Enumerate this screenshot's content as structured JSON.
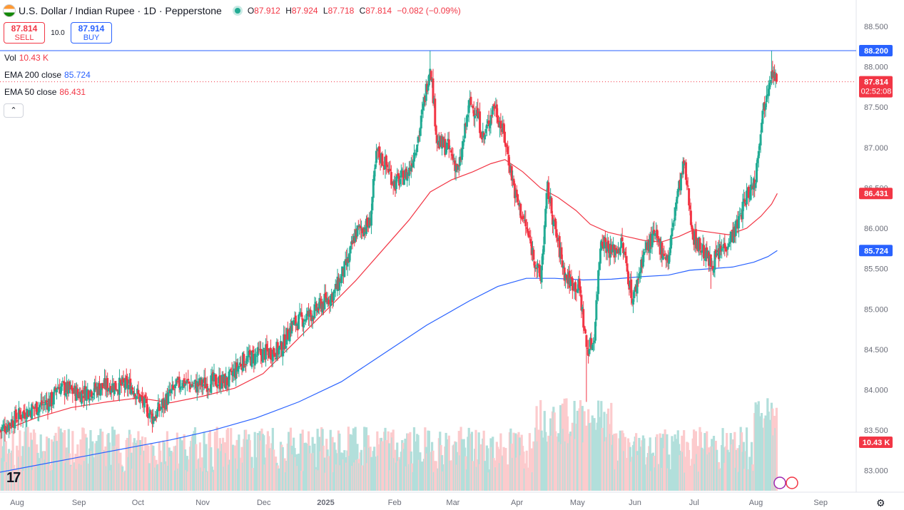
{
  "header": {
    "title": "U.S. Dollar / Indian Rupee · 1D · Pepperstone",
    "ohlc": [
      {
        "key": "O",
        "value": "87.912"
      },
      {
        "key": "H",
        "value": "87.924"
      },
      {
        "key": "L",
        "value": "87.718"
      },
      {
        "key": "C",
        "value": "87.814"
      }
    ],
    "change": "−0.082 (−0.09%)"
  },
  "trade": {
    "sell_price": "87.814",
    "sell_label": "SELL",
    "spread": "10.0",
    "buy_price": "87.914",
    "buy_label": "BUY"
  },
  "legend": {
    "vol_label": "Vol",
    "vol_value": "10.43 K",
    "ema200_label": "EMA 200 close",
    "ema200_value": "85.724",
    "ema50_label": "EMA 50 close",
    "ema50_value": "86.431"
  },
  "price_tags": {
    "high": "88.200",
    "last": "87.814",
    "countdown": "02:52:08",
    "ema50": "86.431",
    "ema200": "85.724",
    "volume": "10.43 K"
  },
  "colors": {
    "up": "#22ab94",
    "down": "#f23645",
    "ema50": "#f23645",
    "ema200": "#2962ff",
    "vol_up": "#b2dfdb",
    "vol_down": "#fccbcd"
  },
  "icons": [
    "tradingview-logo",
    "settings-icon",
    "collapse-icon",
    "currency-flag-icon",
    "market-open-dot-icon"
  ],
  "chart_data": {
    "type": "candlestick",
    "title": "U.S. Dollar / Indian Rupee · 1D · Pepperstone",
    "y_range": [
      82.75,
      88.65
    ],
    "y_ticks": [
      "83.000",
      "83.500",
      "84.000",
      "84.500",
      "85.000",
      "85.500",
      "86.000",
      "86.500",
      "87.000",
      "87.500",
      "88.000",
      "88.500"
    ],
    "y_tick_values": [
      83.0,
      83.5,
      84.0,
      84.5,
      85.0,
      85.5,
      86.0,
      86.5,
      87.0,
      87.5,
      88.0,
      88.5
    ],
    "x_ticks": [
      "Aug",
      "Sep",
      "Oct",
      "Nov",
      "Dec",
      "2025",
      "Feb",
      "Mar",
      "Apr",
      "May",
      "Jun",
      "Jul",
      "Aug",
      "Sep"
    ],
    "x_tick_days": [
      24,
      111,
      194,
      285,
      371,
      458,
      555,
      637,
      727,
      812,
      893,
      976,
      1063,
      1154
    ],
    "horizontal_line": 88.2,
    "last_price": 87.814,
    "anchors": [
      {
        "d": 0,
        "c": 83.5
      },
      {
        "d": 30,
        "c": 83.7
      },
      {
        "d": 75,
        "c": 83.88
      },
      {
        "d": 80,
        "c": 84.05
      },
      {
        "d": 110,
        "c": 83.95
      },
      {
        "d": 150,
        "c": 84.05
      },
      {
        "d": 185,
        "c": 84.05
      },
      {
        "d": 200,
        "c": 83.85
      },
      {
        "d": 215,
        "c": 83.65
      },
      {
        "d": 240,
        "c": 83.95
      },
      {
        "d": 255,
        "c": 84.1
      },
      {
        "d": 275,
        "c": 84.05
      },
      {
        "d": 300,
        "c": 84.1
      },
      {
        "d": 320,
        "c": 84.1
      },
      {
        "d": 340,
        "c": 84.35
      },
      {
        "d": 370,
        "c": 84.45
      },
      {
        "d": 395,
        "c": 84.5
      },
      {
        "d": 410,
        "c": 84.8
      },
      {
        "d": 440,
        "c": 84.95
      },
      {
        "d": 470,
        "c": 85.2
      },
      {
        "d": 490,
        "c": 85.6
      },
      {
        "d": 500,
        "c": 85.95
      },
      {
        "d": 520,
        "c": 86.05
      },
      {
        "d": 530,
        "c": 86.95
      },
      {
        "d": 545,
        "c": 86.75
      },
      {
        "d": 555,
        "c": 86.55
      },
      {
        "d": 575,
        "c": 86.7
      },
      {
        "d": 590,
        "c": 87.2
      },
      {
        "d": 605,
        "c": 88.05
      },
      {
        "d": 615,
        "c": 87.05
      },
      {
        "d": 630,
        "c": 87.0
      },
      {
        "d": 645,
        "c": 86.7
      },
      {
        "d": 660,
        "c": 87.55
      },
      {
        "d": 670,
        "c": 87.45
      },
      {
        "d": 680,
        "c": 87.1
      },
      {
        "d": 695,
        "c": 87.55
      },
      {
        "d": 710,
        "c": 87.1
      },
      {
        "d": 725,
        "c": 86.4
      },
      {
        "d": 740,
        "c": 86.0
      },
      {
        "d": 760,
        "c": 85.35
      },
      {
        "d": 770,
        "c": 86.5
      },
      {
        "d": 780,
        "c": 86.0
      },
      {
        "d": 795,
        "c": 85.4
      },
      {
        "d": 815,
        "c": 85.25
      },
      {
        "d": 825,
        "c": 84.5
      },
      {
        "d": 835,
        "c": 84.6
      },
      {
        "d": 845,
        "c": 85.9
      },
      {
        "d": 860,
        "c": 85.7
      },
      {
        "d": 875,
        "c": 85.8
      },
      {
        "d": 890,
        "c": 85.1
      },
      {
        "d": 905,
        "c": 85.7
      },
      {
        "d": 920,
        "c": 85.9
      },
      {
        "d": 940,
        "c": 85.6
      },
      {
        "d": 950,
        "c": 86.3
      },
      {
        "d": 962,
        "c": 86.8
      },
      {
        "d": 975,
        "c": 85.9
      },
      {
        "d": 990,
        "c": 85.7
      },
      {
        "d": 1000,
        "c": 85.55
      },
      {
        "d": 1020,
        "c": 85.8
      },
      {
        "d": 1035,
        "c": 86.0
      },
      {
        "d": 1050,
        "c": 86.4
      },
      {
        "d": 1062,
        "c": 86.6
      },
      {
        "d": 1070,
        "c": 87.3
      },
      {
        "d": 1078,
        "c": 87.7
      },
      {
        "d": 1085,
        "c": 88.0
      },
      {
        "d": 1088,
        "c": 87.9
      },
      {
        "d": 1093,
        "c": 87.814
      }
    ],
    "ema50_points": [
      {
        "d": 0,
        "v": 83.48
      },
      {
        "d": 50,
        "v": 83.65
      },
      {
        "d": 100,
        "v": 83.78
      },
      {
        "d": 150,
        "v": 83.85
      },
      {
        "d": 195,
        "v": 83.9
      },
      {
        "d": 240,
        "v": 83.84
      },
      {
        "d": 285,
        "v": 83.92
      },
      {
        "d": 330,
        "v": 84.02
      },
      {
        "d": 370,
        "v": 84.2
      },
      {
        "d": 410,
        "v": 84.55
      },
      {
        "d": 455,
        "v": 84.95
      },
      {
        "d": 500,
        "v": 85.35
      },
      {
        "d": 540,
        "v": 85.75
      },
      {
        "d": 575,
        "v": 86.1
      },
      {
        "d": 605,
        "v": 86.45
      },
      {
        "d": 635,
        "v": 86.6
      },
      {
        "d": 665,
        "v": 86.7
      },
      {
        "d": 690,
        "v": 86.8
      },
      {
        "d": 710,
        "v": 86.85
      },
      {
        "d": 735,
        "v": 86.7
      },
      {
        "d": 760,
        "v": 86.5
      },
      {
        "d": 785,
        "v": 86.38
      },
      {
        "d": 810,
        "v": 86.22
      },
      {
        "d": 830,
        "v": 86.05
      },
      {
        "d": 855,
        "v": 85.95
      },
      {
        "d": 880,
        "v": 85.9
      },
      {
        "d": 905,
        "v": 85.85
      },
      {
        "d": 930,
        "v": 85.83
      },
      {
        "d": 955,
        "v": 85.9
      },
      {
        "d": 975,
        "v": 85.98
      },
      {
        "d": 1000,
        "v": 85.95
      },
      {
        "d": 1025,
        "v": 85.92
      },
      {
        "d": 1050,
        "v": 86.0
      },
      {
        "d": 1070,
        "v": 86.15
      },
      {
        "d": 1085,
        "v": 86.3
      },
      {
        "d": 1093,
        "v": 86.431
      }
    ],
    "ema200_points": [
      {
        "d": 0,
        "v": 82.98
      },
      {
        "d": 60,
        "v": 83.08
      },
      {
        "d": 120,
        "v": 83.18
      },
      {
        "d": 180,
        "v": 83.28
      },
      {
        "d": 240,
        "v": 83.38
      },
      {
        "d": 300,
        "v": 83.5
      },
      {
        "d": 360,
        "v": 83.65
      },
      {
        "d": 420,
        "v": 83.85
      },
      {
        "d": 480,
        "v": 84.1
      },
      {
        "d": 540,
        "v": 84.45
      },
      {
        "d": 600,
        "v": 84.8
      },
      {
        "d": 660,
        "v": 85.1
      },
      {
        "d": 700,
        "v": 85.28
      },
      {
        "d": 740,
        "v": 85.38
      },
      {
        "d": 780,
        "v": 85.38
      },
      {
        "d": 820,
        "v": 85.36
      },
      {
        "d": 860,
        "v": 85.37
      },
      {
        "d": 900,
        "v": 85.4
      },
      {
        "d": 940,
        "v": 85.42
      },
      {
        "d": 970,
        "v": 85.48
      },
      {
        "d": 1000,
        "v": 85.5
      },
      {
        "d": 1030,
        "v": 85.52
      },
      {
        "d": 1060,
        "v": 85.58
      },
      {
        "d": 1080,
        "v": 85.65
      },
      {
        "d": 1093,
        "v": 85.724
      }
    ]
  }
}
